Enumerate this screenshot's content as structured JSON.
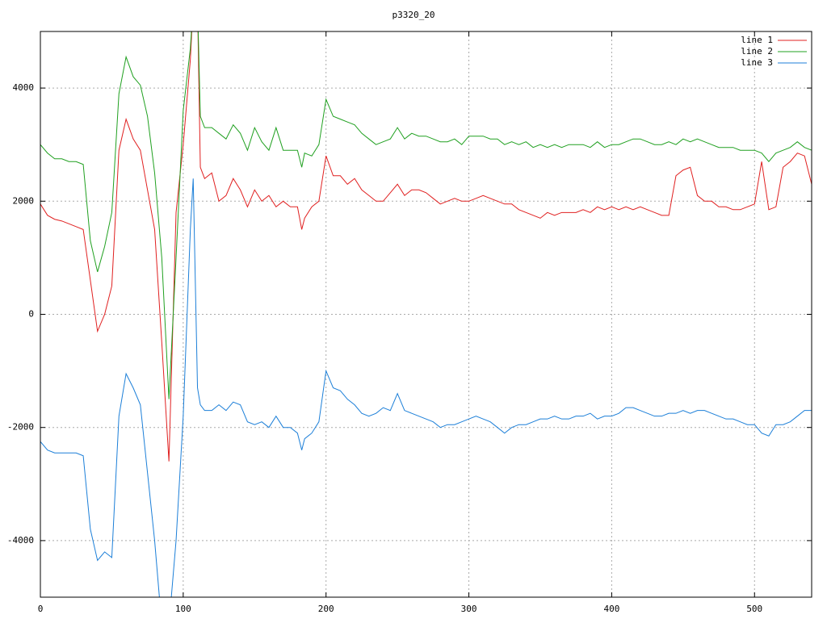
{
  "chart_data": {
    "type": "line",
    "title": "p3320_20",
    "x": [
      0,
      5,
      10,
      15,
      20,
      25,
      30,
      35,
      40,
      45,
      50,
      55,
      60,
      65,
      70,
      75,
      80,
      85,
      90,
      95,
      100,
      105,
      107,
      110,
      112,
      115,
      120,
      125,
      130,
      135,
      140,
      145,
      150,
      155,
      160,
      165,
      170,
      175,
      180,
      183,
      185,
      190,
      195,
      200,
      205,
      210,
      215,
      220,
      225,
      230,
      235,
      240,
      245,
      250,
      255,
      260,
      265,
      270,
      275,
      280,
      285,
      290,
      295,
      300,
      305,
      310,
      315,
      320,
      325,
      330,
      335,
      340,
      345,
      350,
      355,
      360,
      365,
      370,
      375,
      380,
      385,
      390,
      395,
      400,
      405,
      410,
      415,
      420,
      425,
      430,
      435,
      440,
      445,
      450,
      455,
      460,
      465,
      470,
      475,
      480,
      485,
      490,
      495,
      500,
      505,
      510,
      515,
      520,
      525,
      530,
      535,
      540
    ],
    "series": [
      {
        "name": "line 1",
        "color": "#e02020",
        "values": [
          1950,
          1750,
          1680,
          1650,
          1600,
          1550,
          1500,
          600,
          -300,
          0,
          500,
          2900,
          3450,
          3100,
          2900,
          2200,
          1500,
          -500,
          -2600,
          1800,
          3000,
          4500,
          5500,
          5500,
          2600,
          2400,
          2500,
          2000,
          2100,
          2400,
          2200,
          1900,
          2200,
          2000,
          2100,
          1900,
          2000,
          1900,
          1900,
          1500,
          1700,
          1900,
          2000,
          2800,
          2450,
          2450,
          2300,
          2400,
          2200,
          2100,
          2000,
          2000,
          2150,
          2300,
          2100,
          2200,
          2200,
          2150,
          2050,
          1950,
          2000,
          2050,
          2000,
          2000,
          2050,
          2100,
          2050,
          2000,
          1950,
          1950,
          1850,
          1800,
          1750,
          1700,
          1800,
          1750,
          1800,
          1800,
          1800,
          1850,
          1800,
          1900,
          1850,
          1900,
          1850,
          1900,
          1850,
          1900,
          1850,
          1800,
          1750,
          1750,
          2450,
          2550,
          2600,
          2100,
          2000,
          2000,
          1900,
          1900,
          1850,
          1850,
          1900,
          1950,
          2700,
          1850,
          1900,
          2600,
          2700,
          2850,
          2800,
          2300
        ]
      },
      {
        "name": "line 2",
        "color": "#20a020",
        "values": [
          3000,
          2850,
          2750,
          2750,
          2700,
          2700,
          2650,
          1300,
          750,
          1200,
          1800,
          3900,
          4550,
          4200,
          4050,
          3500,
          2500,
          1000,
          -1500,
          1000,
          3600,
          4700,
          5500,
          5500,
          3500,
          3300,
          3300,
          3200,
          3100,
          3350,
          3200,
          2900,
          3300,
          3050,
          2900,
          3300,
          2900,
          2900,
          2900,
          2600,
          2850,
          2800,
          3000,
          3800,
          3500,
          3450,
          3400,
          3350,
          3200,
          3100,
          3000,
          3050,
          3100,
          3300,
          3100,
          3200,
          3150,
          3150,
          3100,
          3050,
          3050,
          3100,
          3000,
          3150,
          3150,
          3150,
          3100,
          3100,
          3000,
          3050,
          3000,
          3050,
          2950,
          3000,
          2950,
          3000,
          2950,
          3000,
          3000,
          3000,
          2950,
          3050,
          2950,
          3000,
          3000,
          3050,
          3100,
          3100,
          3050,
          3000,
          3000,
          3050,
          3000,
          3100,
          3050,
          3100,
          3050,
          3000,
          2950,
          2950,
          2950,
          2900,
          2900,
          2900,
          2850,
          2700,
          2850,
          2900,
          2950,
          3050,
          2950,
          2900
        ]
      },
      {
        "name": "line 3",
        "color": "#1c7fd8",
        "values": [
          -2250,
          -2400,
          -2450,
          -2450,
          -2450,
          -2450,
          -2500,
          -3800,
          -4350,
          -4200,
          -4300,
          -1800,
          -1050,
          -1300,
          -1600,
          -2800,
          -4000,
          -5500,
          -5500,
          -4000,
          -1800,
          1500,
          2400,
          -1300,
          -1600,
          -1700,
          -1700,
          -1600,
          -1700,
          -1550,
          -1600,
          -1900,
          -1950,
          -1900,
          -2000,
          -1800,
          -2000,
          -2000,
          -2100,
          -2400,
          -2200,
          -2100,
          -1900,
          -1000,
          -1300,
          -1350,
          -1500,
          -1600,
          -1750,
          -1800,
          -1750,
          -1650,
          -1700,
          -1400,
          -1700,
          -1750,
          -1800,
          -1850,
          -1900,
          -2000,
          -1950,
          -1950,
          -1900,
          -1850,
          -1800,
          -1850,
          -1900,
          -2000,
          -2100,
          -2000,
          -1950,
          -1950,
          -1900,
          -1850,
          -1850,
          -1800,
          -1850,
          -1850,
          -1800,
          -1800,
          -1750,
          -1850,
          -1800,
          -1800,
          -1750,
          -1650,
          -1650,
          -1700,
          -1750,
          -1800,
          -1800,
          -1750,
          -1750,
          -1700,
          -1750,
          -1700,
          -1700,
          -1750,
          -1800,
          -1850,
          -1850,
          -1900,
          -1950,
          -1950,
          -2100,
          -2150,
          -1950,
          -1950,
          -1900,
          -1800,
          -1700,
          -1700
        ]
      }
    ],
    "xlim": [
      0,
      540
    ],
    "xticks": [
      0,
      100,
      200,
      300,
      400,
      500
    ],
    "ylim": [
      -5000,
      5000
    ],
    "yticks": [
      -4000,
      -2000,
      0,
      2000,
      4000
    ],
    "grid": true,
    "legend": "top-right"
  }
}
